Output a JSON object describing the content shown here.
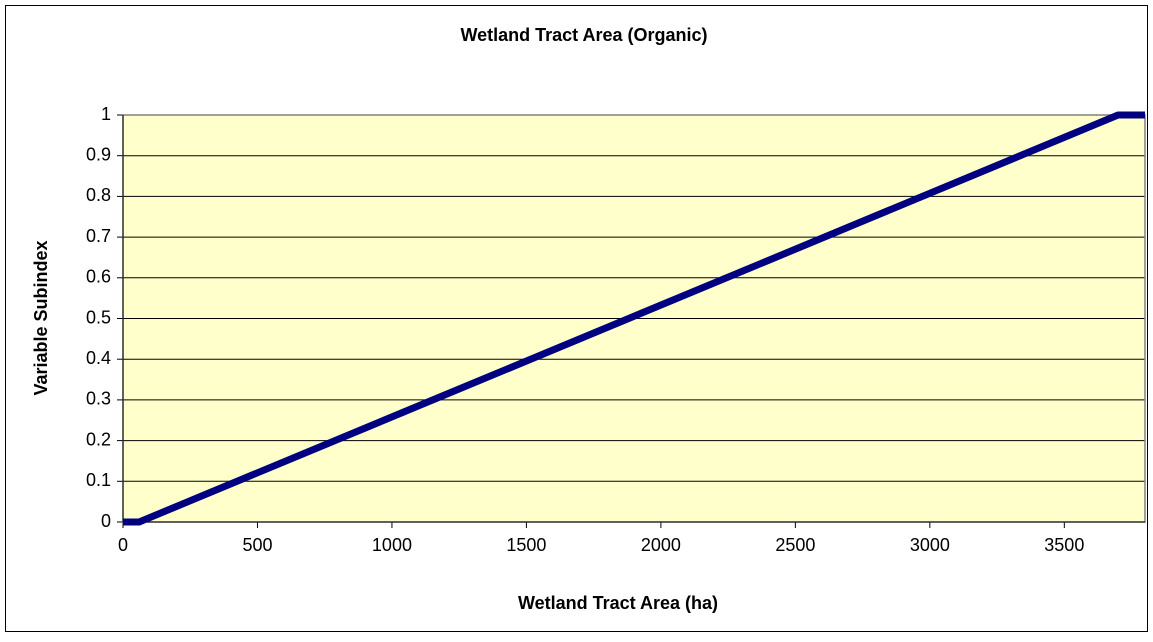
{
  "chart_data": {
    "type": "line",
    "title": "Wetland Tract Area (Organic)",
    "x_label": "Wetland Tract Area (ha)",
    "y_label": "Variable Subindex",
    "x": [
      0,
      60,
      3700,
      3800
    ],
    "series": [
      {
        "color": "#000080",
        "values": [
          0,
          0,
          1,
          1
        ]
      }
    ],
    "xlim": [
      0,
      3800
    ],
    "xticks": [
      0,
      500,
      1000,
      1500,
      2000,
      2500,
      3000,
      3500
    ],
    "ylim": [
      0,
      1
    ],
    "yticks": [
      0,
      0.1,
      0.2,
      0.3,
      0.4,
      0.5,
      0.6,
      0.7,
      0.8,
      0.9,
      1
    ],
    "grid": true,
    "plot_background": "#ffffcc"
  }
}
